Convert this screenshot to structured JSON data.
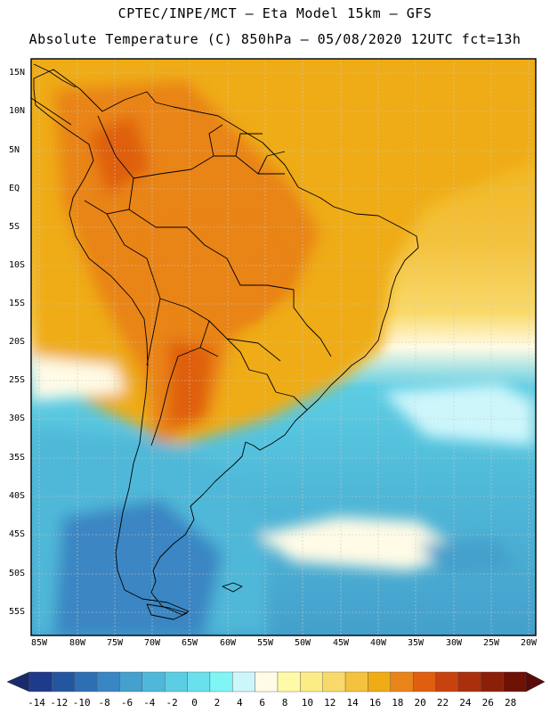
{
  "header": {
    "line1": "CPTEC/INPE/MCT —  Eta Model 15km — GFS",
    "line2": "Absolute Temperature (C) 850hPa — 05/08/2020 12UTC fct=13h"
  },
  "axes": {
    "lat_labels": [
      "15N",
      "10N",
      "5N",
      "EQ",
      "5S",
      "10S",
      "15S",
      "20S",
      "25S",
      "30S",
      "35S",
      "40S",
      "45S",
      "50S",
      "55S"
    ],
    "lon_labels": [
      "85W",
      "80W",
      "75W",
      "70W",
      "65W",
      "60W",
      "55W",
      "50W",
      "45W",
      "40W",
      "35W",
      "30W",
      "25W",
      "20W"
    ]
  },
  "colorbar": {
    "labels": [
      "-14",
      "-12",
      "-10",
      "-8",
      "-6",
      "-4",
      "-2",
      "0",
      "2",
      "4",
      "6",
      "8",
      "10",
      "12",
      "14",
      "16",
      "18",
      "20",
      "22",
      "24",
      "26",
      "28"
    ],
    "colors": [
      "#1e3a8a",
      "#2456a0",
      "#2e6fb4",
      "#3a86c3",
      "#44a0cc",
      "#4fb8d8",
      "#5ccde3",
      "#69e0ec",
      "#7ff5f5",
      "#cdf6fb",
      "#fffbe6",
      "#fffaa8",
      "#fbec86",
      "#f9d96a",
      "#f3c23e",
      "#efac14",
      "#e98418",
      "#df5e10",
      "#c8420e",
      "#aa2f0c",
      "#8a2008",
      "#6e1206"
    ]
  }
}
